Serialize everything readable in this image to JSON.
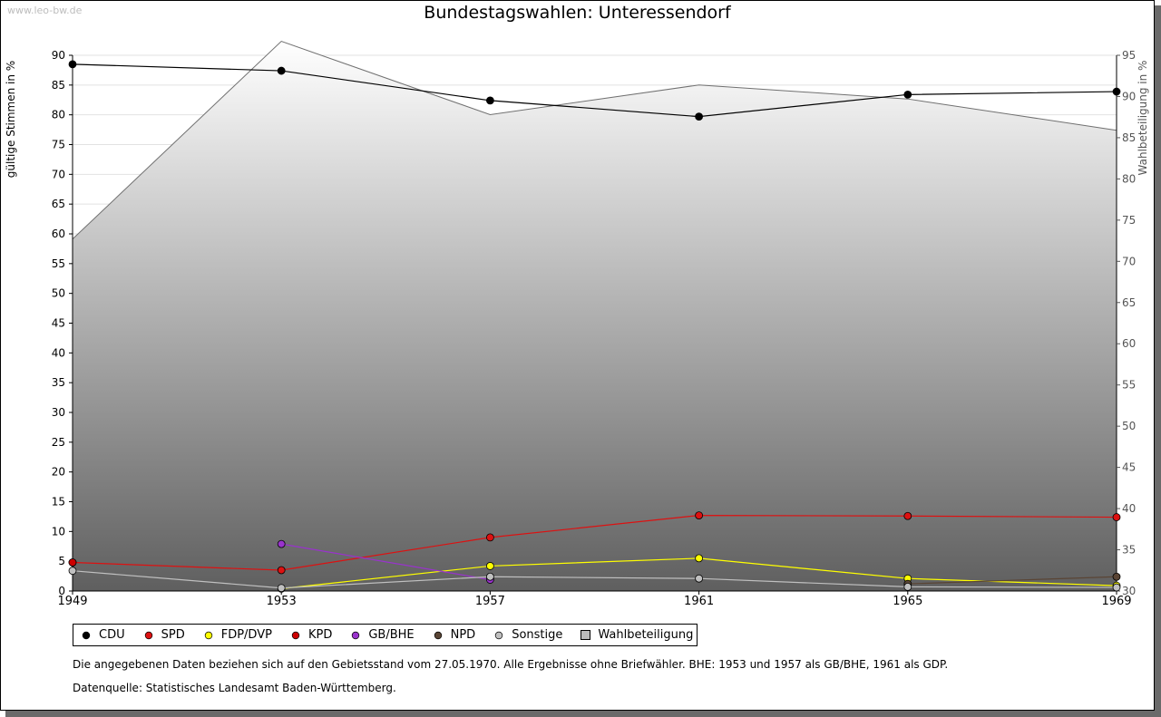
{
  "watermark": "www.leo-bw.de",
  "footnote": "Die angegebenen Daten beziehen sich auf den Gebietsstand vom 27.05.1970. Alle Ergebnisse ohne Briefwähler. BHE: 1953 und 1957 als GB/BHE, 1961 als GDP.",
  "source": "Datenquelle: Statistisches Landesamt Baden-Württemberg.",
  "chart_data": {
    "type": "line",
    "title": "Bundestagswahlen: Unteressendorf",
    "xlabel": "",
    "ylabel": "gültige Stimmen in %",
    "y2label": "Wahlbeteiligung in %",
    "ylim": [
      0,
      90
    ],
    "y2lim": [
      30,
      95
    ],
    "categories": [
      "1949",
      "1953",
      "1957",
      "1961",
      "1965",
      "1969"
    ],
    "yticks": [
      "0",
      "5",
      "10",
      "15",
      "20",
      "25",
      "30",
      "35",
      "40",
      "45",
      "50",
      "55",
      "60",
      "65",
      "70",
      "75",
      "80",
      "85",
      "90"
    ],
    "y2ticks": [
      "30",
      "35",
      "40",
      "45",
      "50",
      "55",
      "60",
      "65",
      "70",
      "75",
      "80",
      "85",
      "90",
      "95"
    ],
    "series": [
      {
        "name": "CDU",
        "color": "#000000",
        "values": [
          88.5,
          87.4,
          82.4,
          79.7,
          83.4,
          83.9
        ]
      },
      {
        "name": "SPD",
        "color": "#dd1111",
        "values": [
          4.8,
          3.5,
          9.0,
          12.7,
          12.6,
          12.4
        ]
      },
      {
        "name": "FDP/DVP",
        "color": "#ffff00",
        "values": [
          null,
          0.4,
          4.2,
          5.5,
          2.1,
          0.9
        ]
      },
      {
        "name": "KPD",
        "color": "#cc0000",
        "values": [
          4.8,
          null,
          null,
          null,
          null,
          null
        ]
      },
      {
        "name": "GB/BHE",
        "color": "#9933cc",
        "values": [
          null,
          7.9,
          1.9,
          null,
          null,
          null
        ]
      },
      {
        "name": "NPD",
        "color": "#5a4535",
        "values": [
          null,
          null,
          null,
          null,
          1.2,
          2.4
        ]
      },
      {
        "name": "Sonstige",
        "color": "#c0c0c0",
        "values": [
          3.4,
          0.5,
          2.4,
          2.1,
          0.7,
          0.6
        ]
      }
    ],
    "area": {
      "name": "Wahlbeteiligung",
      "color": "#bbbbbb",
      "values": [
        72.7,
        96.7,
        87.8,
        91.4,
        89.7,
        85.9
      ]
    }
  }
}
